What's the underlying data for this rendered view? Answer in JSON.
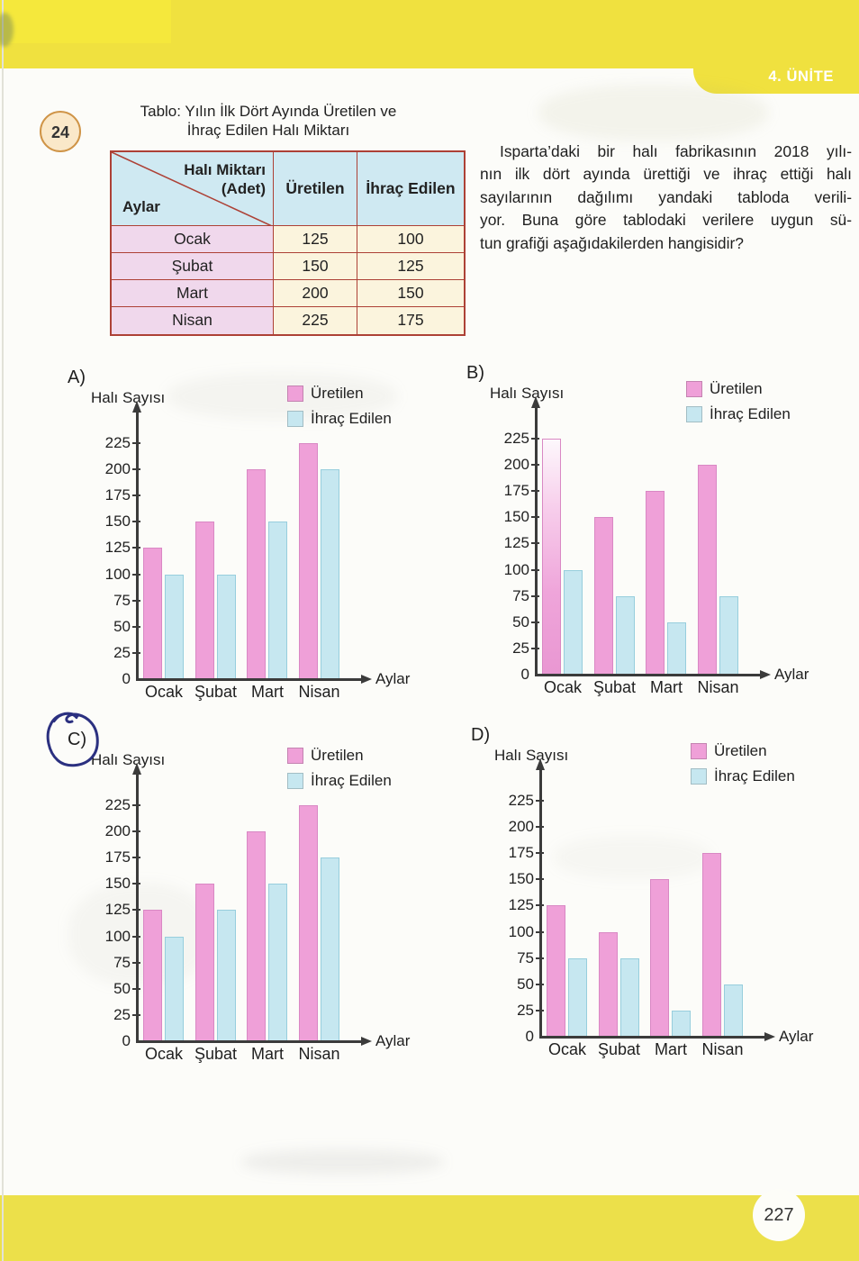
{
  "page": {
    "unit_tab": "4. ÜNİTE",
    "page_number": "227"
  },
  "question": {
    "number": "24",
    "text_lines": [
      "Isparta’daki bir halı fabrikasının 2018 yılı-",
      "nın ilk dört ayında ürettiği ve ihraç ettiği halı",
      "sayılarının dağılımı yandaki tabloda verili-",
      "yor. Buna göre tablodaki verilere uygun sü-",
      "tun grafiği aşağıdakilerden hangisidir?"
    ]
  },
  "table": {
    "title_lines": [
      "Tablo: Yılın İlk Dört Ayında Üretilen ve",
      "İhraç Edilen Halı Miktarı"
    ],
    "corner": {
      "line1": "Halı Miktarı",
      "line2": "(Adet)",
      "line3": "Aylar"
    },
    "col_headers": [
      "Üretilen",
      "İhraç Edilen"
    ],
    "rows": [
      {
        "month": "Ocak",
        "uretilen": "125",
        "ihrac": "100"
      },
      {
        "month": "Şubat",
        "uretilen": "150",
        "ihrac": "125"
      },
      {
        "month": "Mart",
        "uretilen": "200",
        "ihrac": "150"
      },
      {
        "month": "Nisan",
        "uretilen": "225",
        "ihrac": "175"
      }
    ]
  },
  "chart_data": {
    "type": "bar",
    "categories": [
      "Ocak",
      "Şubat",
      "Mart",
      "Nisan"
    ],
    "ylabel": "Halı Sayısı",
    "xlabel": "Aylar",
    "yticks": [
      0,
      25,
      50,
      75,
      100,
      125,
      150,
      175,
      200,
      225
    ],
    "ylim": [
      0,
      237
    ],
    "grid": false,
    "legend_position": "top-right",
    "legend": [
      {
        "name": "Üretilen",
        "color": "#efa0d8"
      },
      {
        "name": "İhraç Edilen",
        "color": "#c6e7f0"
      }
    ],
    "options": [
      {
        "label": "A)",
        "series": [
          {
            "name": "Üretilen",
            "values": [
              125,
              150,
              200,
              225
            ]
          },
          {
            "name": "İhraç Edilen",
            "values": [
              100,
              100,
              150,
              200
            ]
          }
        ]
      },
      {
        "label": "B)",
        "series": [
          {
            "name": "Üretilen",
            "values": [
              225,
              150,
              175,
              200
            ]
          },
          {
            "name": "İhraç Edilen",
            "values": [
              100,
              75,
              50,
              75
            ]
          }
        ]
      },
      {
        "label": "C)",
        "series": [
          {
            "name": "Üretilen",
            "values": [
              125,
              150,
              200,
              225
            ]
          },
          {
            "name": "İhraç Edilen",
            "values": [
              100,
              125,
              150,
              175
            ]
          }
        ]
      },
      {
        "label": "D)",
        "series": [
          {
            "name": "Üretilen",
            "values": [
              125,
              100,
              150,
              175
            ]
          },
          {
            "name": "İhraç Edilen",
            "values": [
              75,
              75,
              25,
              50
            ]
          }
        ]
      }
    ]
  },
  "annotation": {
    "option": "C",
    "type": "hand-drawn-pen-circle",
    "color": "#2b3080"
  },
  "colors": {
    "band_yellow": "#f0e13f",
    "bottom_band_yellow": "#ece04a",
    "table_border": "#ad4136",
    "table_header_bg": "#cfe9f2",
    "table_month_bg": "#f0d8ec",
    "table_value_bg": "#fbf4dd",
    "bar_pink": "#efa0d8",
    "bar_blue": "#c6e7f0",
    "axis": "#3b3b3b"
  }
}
